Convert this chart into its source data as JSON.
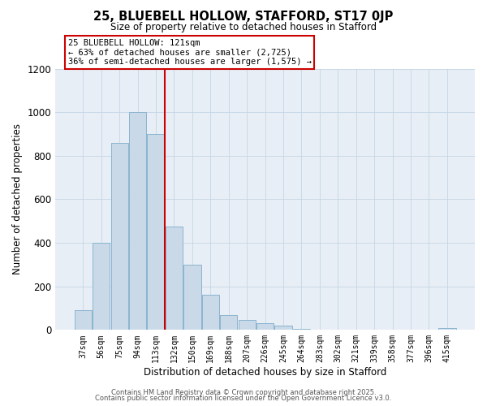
{
  "title": "25, BLUEBELL HOLLOW, STAFFORD, ST17 0JP",
  "subtitle": "Size of property relative to detached houses in Stafford",
  "xlabel": "Distribution of detached houses by size in Stafford",
  "ylabel": "Number of detached properties",
  "bar_color": "#c9d9e8",
  "bar_edgecolor": "#8ab4d0",
  "bar_linewidth": 0.7,
  "categories": [
    "37sqm",
    "56sqm",
    "75sqm",
    "94sqm",
    "113sqm",
    "132sqm",
    "150sqm",
    "169sqm",
    "188sqm",
    "207sqm",
    "226sqm",
    "245sqm",
    "264sqm",
    "283sqm",
    "302sqm",
    "321sqm",
    "339sqm",
    "358sqm",
    "377sqm",
    "396sqm",
    "415sqm"
  ],
  "values": [
    90,
    400,
    860,
    1000,
    900,
    475,
    300,
    160,
    70,
    45,
    30,
    20,
    5,
    2,
    2,
    2,
    2,
    2,
    2,
    2,
    8
  ],
  "vline_x": 4.5,
  "vline_color": "#cc0000",
  "annotation_title": "25 BLUEBELL HOLLOW: 121sqm",
  "annotation_line1": "← 63% of detached houses are smaller (2,725)",
  "annotation_line2": "36% of semi-detached houses are larger (1,575) →",
  "annotation_box_facecolor": "#ffffff",
  "annotation_box_edgecolor": "#cc0000",
  "ylim": [
    0,
    1200
  ],
  "yticks": [
    0,
    200,
    400,
    600,
    800,
    1000,
    1200
  ],
  "grid_color": "#c5d5e5",
  "plot_bg_color": "#e8eef5",
  "fig_bg_color": "#ffffff",
  "footer1": "Contains HM Land Registry data © Crown copyright and database right 2025.",
  "footer2": "Contains public sector information licensed under the Open Government Licence v3.0."
}
